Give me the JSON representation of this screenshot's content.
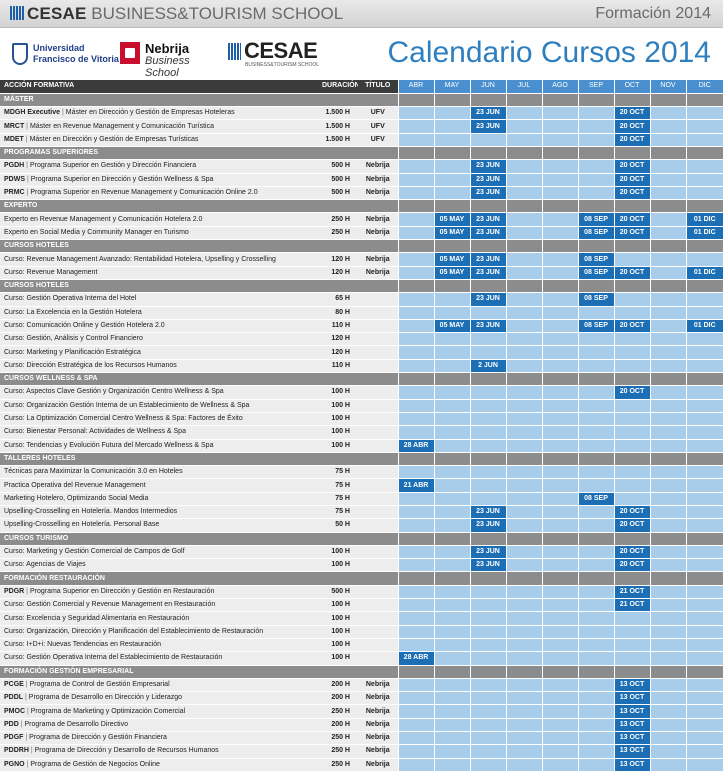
{
  "header": {
    "brand_bold": "CESAE",
    "brand_rest": " BUSINESS&TOURISM SCHOOL",
    "edition": "Formación 2014"
  },
  "logos": {
    "ufv_line1": "Universidad",
    "ufv_line2": "Francisco de Vitoria",
    "nebrija_line1": "Nebrija",
    "nebrija_line2": "Business School",
    "cesae_name": "CESAE",
    "cesae_sub": "BUSINESS&TOURISM SCHOOL"
  },
  "calendar_title": "Calendario Cursos 2014",
  "columns": {
    "accion": "ACCIÓN FORMATIVA",
    "duracion": "DURACIÓN",
    "titulo": "TÍTULO",
    "months": [
      "ABR",
      "MAY",
      "JUN",
      "JUL",
      "AGO",
      "SEP",
      "OCT",
      "NOV",
      "DIC"
    ]
  },
  "rows": [
    {
      "type": "section",
      "label": "MÁSTER"
    },
    {
      "type": "course",
      "code": "MDGH Executive",
      "label": "Máster en Dirección y Gestión de Empresas Hoteleras",
      "dur": "1.500 H",
      "tit": "UFV",
      "dates": {
        "JUN": "23 JUN",
        "OCT": "20 OCT"
      }
    },
    {
      "type": "course",
      "code": "MRCT",
      "label": "Máster en Revenue Management y Comunicación Turística",
      "dur": "1.500 H",
      "tit": "UFV",
      "dates": {
        "JUN": "23 JUN",
        "OCT": "20 OCT"
      }
    },
    {
      "type": "course",
      "code": "MDET",
      "label": "Máster en Dirección y Gestión de Empresas Turísticas",
      "dur": "1.500 H",
      "tit": "UFV",
      "dates": {
        "OCT": "20 OCT"
      }
    },
    {
      "type": "section",
      "label": "PROGRAMAS SUPERIORES"
    },
    {
      "type": "course",
      "code": "PGDH",
      "label": "Programa Superior en Gestión y Dirección Financiera",
      "dur": "500 H",
      "tit": "Nebrija",
      "dates": {
        "JUN": "23 JUN",
        "OCT": "20 OCT"
      }
    },
    {
      "type": "course",
      "code": "PDWS",
      "label": "Programa Superior en Dirección y Gestión Wellness & Spa",
      "dur": "500 H",
      "tit": "Nebrija",
      "dates": {
        "JUN": "23 JUN",
        "OCT": "20 OCT"
      }
    },
    {
      "type": "course",
      "code": "PRMC",
      "label": "Programa Superior en Revenue Management y Comunicación Online 2.0",
      "dur": "500 H",
      "tit": "Nebrija",
      "dates": {
        "JUN": "23 JUN",
        "OCT": "20 OCT"
      }
    },
    {
      "type": "section",
      "label": "EXPERTO"
    },
    {
      "type": "course",
      "code": "",
      "label": "Experto en Revenue Management y Comunicación Hotelera 2.0",
      "dur": "250 H",
      "tit": "Nebrija",
      "dates": {
        "MAY": "05 MAY",
        "JUN": "23 JUN",
        "SEP": "08 SEP",
        "OCT": "20 OCT",
        "DIC": "01 DIC"
      }
    },
    {
      "type": "course",
      "code": "",
      "label": "Experto en Social Media y Community Manager en Turismo",
      "dur": "250 H",
      "tit": "Nebrija",
      "dates": {
        "MAY": "05 MAY",
        "JUN": "23 JUN",
        "SEP": "08 SEP",
        "OCT": "20 OCT",
        "DIC": "01 DIC"
      }
    },
    {
      "type": "section",
      "label": "CURSOS HOTELES"
    },
    {
      "type": "course",
      "code": "",
      "label": "Curso: Revenue Management Avanzado: Rentabilidad Hotelera, Upselling y Crosselling",
      "dur": "120 H",
      "tit": "Nebrija",
      "dates": {
        "MAY": "05 MAY",
        "JUN": "23 JUN",
        "SEP": "08 SEP"
      }
    },
    {
      "type": "course",
      "code": "",
      "label": "Curso: Revenue Management",
      "dur": "120 H",
      "tit": "Nebrija",
      "dates": {
        "MAY": "05 MAY",
        "JUN": "23 JUN",
        "SEP": "08 SEP",
        "OCT": "20 OCT",
        "DIC": "01 DIC"
      }
    },
    {
      "type": "section",
      "label": "CURSOS HOTELES"
    },
    {
      "type": "course",
      "code": "",
      "label": "Curso: Gestión Operativa Interna del Hotel",
      "dur": "65 H",
      "tit": "",
      "dates": {
        "JUN": "23 JUN",
        "SEP": "08 SEP"
      }
    },
    {
      "type": "course",
      "code": "",
      "label": "Curso: La Excelencia en la Gestión Hotelera",
      "dur": "80 H",
      "tit": "",
      "dates": {}
    },
    {
      "type": "course",
      "code": "",
      "label": "Curso: Comunicación Online y Gestión Hotelera 2.0",
      "dur": "110 H",
      "tit": "",
      "dates": {
        "MAY": "05 MAY",
        "JUN": "23 JUN",
        "SEP": "08 SEP",
        "OCT": "20 OCT",
        "DIC": "01 DIC"
      }
    },
    {
      "type": "course",
      "code": "",
      "label": "Curso: Gestión, Análisis y Control Financiero",
      "dur": "120 H",
      "tit": "",
      "dates": {}
    },
    {
      "type": "course",
      "code": "",
      "label": "Curso: Marketing y Planificación Estratégica",
      "dur": "120 H",
      "tit": "",
      "dates": {}
    },
    {
      "type": "course",
      "code": "",
      "label": "Curso: Dirección Estratégica de los Recursos Humanos",
      "dur": "110 H",
      "tit": "",
      "dates": {
        "JUN": "2 JUN"
      }
    },
    {
      "type": "section",
      "label": "CURSOS WELLNESS & SPA"
    },
    {
      "type": "course",
      "code": "",
      "label": "Curso: Aspectos Clave Gestión y Organización Centro Wellness & Spa",
      "dur": "100 H",
      "tit": "",
      "dates": {
        "OCT": "20 OCT"
      }
    },
    {
      "type": "course",
      "code": "",
      "label": "Curso: Organización Gestión Interna de un Establecimiento de Wellness & Spa",
      "dur": "100 H",
      "tit": "",
      "dates": {}
    },
    {
      "type": "course",
      "code": "",
      "label": "Curso: La Optimización Comercial Centro Wellness & Spa: Factores de Éxito",
      "dur": "100 H",
      "tit": "",
      "dates": {}
    },
    {
      "type": "course",
      "code": "",
      "label": "Curso: Bienestar Personal: Actividades de Wellness & Spa",
      "dur": "100 H",
      "tit": "",
      "dates": {}
    },
    {
      "type": "course",
      "code": "",
      "label": "Curso: Tendencias y Evolución Futura del Mercado Wellness & Spa",
      "dur": "100 H",
      "tit": "",
      "dates": {
        "ABR": "28 ABR"
      }
    },
    {
      "type": "section",
      "label": "TALLERES HOTELES"
    },
    {
      "type": "course",
      "code": "",
      "label": "Técnicas para Maximizar la Comunicación 3.0 en Hoteles",
      "dur": "75 H",
      "tit": "",
      "dates": {}
    },
    {
      "type": "course",
      "code": "",
      "label": "Practica Operativa del Revenue Management",
      "dur": "75 H",
      "tit": "",
      "dates": {
        "ABR": "21 ABR"
      }
    },
    {
      "type": "course",
      "code": "",
      "label": "Marketing Hotelero, Optimizando Social Media",
      "dur": "75 H",
      "tit": "",
      "dates": {
        "SEP": "08 SEP"
      }
    },
    {
      "type": "course",
      "code": "",
      "label": "Upselling-Crosselling en Hotelería. Mandos Intermedios",
      "dur": "75 H",
      "tit": "",
      "dates": {
        "JUN": "23 JUN",
        "OCT": "20 OCT"
      }
    },
    {
      "type": "course",
      "code": "",
      "label": "Upselling-Crosselling en Hotelería. Personal Base",
      "dur": "50 H",
      "tit": "",
      "dates": {
        "JUN": "23 JUN",
        "OCT": "20 OCT"
      }
    },
    {
      "type": "section",
      "label": "CURSOS TURISMO"
    },
    {
      "type": "course",
      "code": "",
      "label": "Curso: Marketing y Gestión Comercial de Campos de Golf",
      "dur": "100 H",
      "tit": "",
      "dates": {
        "JUN": "23 JUN",
        "OCT": "20 OCT"
      }
    },
    {
      "type": "course",
      "code": "",
      "label": "Curso: Agencias de Viajes",
      "dur": "100 H",
      "tit": "",
      "dates": {
        "JUN": "23 JUN",
        "OCT": "20 OCT"
      }
    },
    {
      "type": "section",
      "label": "FORMACIÓN RESTAURACIÓN"
    },
    {
      "type": "course",
      "code": "PDGR",
      "label": "Programa Superior en Dirección y Gestión en Restauración",
      "dur": "500 H",
      "tit": "",
      "dates": {
        "OCT": "21 OCT"
      }
    },
    {
      "type": "course",
      "code": "",
      "label": "Curso: Gestión Comercial y Revenue Management en Restauración",
      "dur": "100 H",
      "tit": "",
      "dates": {
        "OCT": "21 OCT"
      }
    },
    {
      "type": "course",
      "code": "",
      "label": "Curso: Excelencia y Seguridad Alimentaria en Restauración",
      "dur": "100 H",
      "tit": "",
      "dates": {}
    },
    {
      "type": "course",
      "code": "",
      "label": "Curso: Organización, Dirección y Planificación del Establecimiento de Restauración",
      "dur": "100 H",
      "tit": "",
      "dates": {}
    },
    {
      "type": "course",
      "code": "",
      "label": "Curso: I+D+i: Nuevas Tendencias en Restauración",
      "dur": "100 H",
      "tit": "",
      "dates": {}
    },
    {
      "type": "course",
      "code": "",
      "label": "Curso: Gestión Operativa Interna del Establecimiento de Restauración",
      "dur": "100 H",
      "tit": "",
      "dates": {
        "ABR": "28 ABR"
      }
    },
    {
      "type": "section",
      "label": "FORMACIÓN GESTIÓN EMPRESARIAL"
    },
    {
      "type": "course",
      "code": "PCGE",
      "label": "Programa de Control de Gestión Empresarial",
      "dur": "200 H",
      "tit": "Nebrija",
      "dates": {
        "OCT": "13 OCT"
      }
    },
    {
      "type": "course",
      "code": "PDDL",
      "label": "Programa de Desarrollo en Dirección y Liderazgo",
      "dur": "200 H",
      "tit": "Nebrija",
      "dates": {
        "OCT": "13 OCT"
      }
    },
    {
      "type": "course",
      "code": "PMOC",
      "label": "Programa de Marketing y Optimización Comercial",
      "dur": "250 H",
      "tit": "Nebrija",
      "dates": {
        "OCT": "13 OCT"
      }
    },
    {
      "type": "course",
      "code": "PDD",
      "label": "Programa de Desarrollo Directivo",
      "dur": "200 H",
      "tit": "Nebrija",
      "dates": {
        "OCT": "13 OCT"
      }
    },
    {
      "type": "course",
      "code": "PDGF",
      "label": "Programa de Dirección y Gestión Financiera",
      "dur": "250 H",
      "tit": "Nebrija",
      "dates": {
        "OCT": "13 OCT"
      }
    },
    {
      "type": "course",
      "code": "PDDRH",
      "label": "Programa de Dirección y Desarrollo de Recursos Humanos",
      "dur": "250 H",
      "tit": "Nebrija",
      "dates": {
        "OCT": "13 OCT"
      }
    },
    {
      "type": "course",
      "code": "PGNO",
      "label": "Programa de Gestión de Negocios Online",
      "dur": "250 H",
      "tit": "Nebrija",
      "dates": {
        "OCT": "13 OCT"
      }
    }
  ]
}
